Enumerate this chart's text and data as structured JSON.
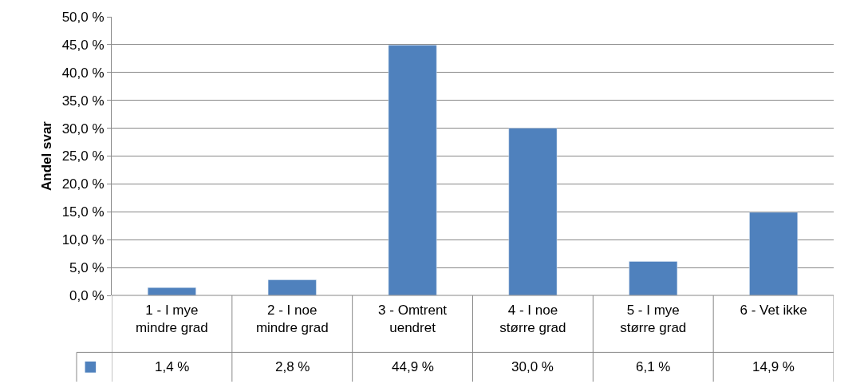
{
  "chart_data": {
    "type": "bar",
    "ylabel": "Andel svar",
    "categories": [
      "1 - I mye mindre grad",
      "2 - I noe mindre grad",
      "3 - Omtrent uendret",
      "4 - I noe større grad",
      "5 - I mye større grad",
      "6 - Vet ikke"
    ],
    "series": [
      {
        "color": "#4f81bd",
        "values": [
          1.4,
          2.8,
          44.9,
          30.0,
          6.1,
          14.9
        ],
        "value_labels": [
          "1,4 %",
          "2,8 %",
          "44,9 %",
          "30,0 %",
          "6,1 %",
          "14,9 %"
        ]
      }
    ],
    "ylim": [
      0,
      50
    ],
    "yticks": [
      {
        "value": 0,
        "label": "0,0 %"
      },
      {
        "value": 5,
        "label": "5,0 %"
      },
      {
        "value": 10,
        "label": "10,0 %"
      },
      {
        "value": 15,
        "label": "15,0 %"
      },
      {
        "value": 20,
        "label": "20,0 %"
      },
      {
        "value": 25,
        "label": "25,0 %"
      },
      {
        "value": 30,
        "label": "30,0 %"
      },
      {
        "value": 35,
        "label": "35,0 %"
      },
      {
        "value": 40,
        "label": "40,0 %"
      },
      {
        "value": 45,
        "label": "45,0 %"
      },
      {
        "value": 50,
        "label": "50,0 %"
      }
    ],
    "grid": "y"
  }
}
